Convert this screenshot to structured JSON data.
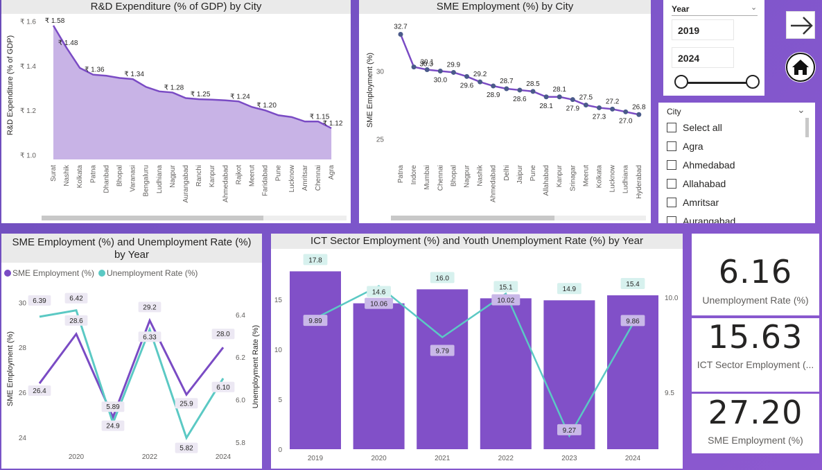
{
  "colors": {
    "purple": "#7a4bc4",
    "bar": "#8150c8",
    "teal": "#5bc9c4",
    "area": "#c8b3e6",
    "line": "#7a4bc4",
    "dot": "#4a5a8a"
  },
  "rd": {
    "title": "R&D Expenditure (% of GDP) by City",
    "ylabel": "R&D Expenditure (% of GDP)",
    "yticks": [
      "₹ 1.6",
      "₹ 1.4",
      "₹ 1.2",
      "₹ 1.0"
    ]
  },
  "sme_city": {
    "title": "SME Employment (%) by City",
    "ylabel": "SME Employment (%)",
    "yticks": [
      "30",
      "25"
    ]
  },
  "slicer": {
    "label": "Year",
    "from": "2019",
    "to": "2024",
    "nav_icon": "arrow-right-icon",
    "home_icon": "home-icon"
  },
  "city_slicer": {
    "label": "City",
    "items": [
      "Select all",
      "Agra",
      "Ahmedabad",
      "Allahabad",
      "Amritsar",
      "Aurangabad"
    ]
  },
  "sme_unemp": {
    "title_line1": "SME Employment (%) and Unemployment Rate (%)",
    "title_line2": "by Year",
    "legend1": "SME Employment (%)",
    "legend2": "Unemployment Rate (%)",
    "ylabel_left": "SME Employment (%)",
    "ylabel_right": "Unemployment Rate (%)",
    "yticks_left": [
      "30",
      "28",
      "26",
      "24"
    ],
    "yticks_right": [
      "6.4",
      "6.2",
      "6.0",
      "5.8"
    ],
    "xticks": [
      "2020",
      "2022",
      "2024"
    ]
  },
  "ict": {
    "title": "ICT Sector Employment (%) and Youth Unemployment Rate (%) by Year",
    "yticks_left": [
      "15",
      "10",
      "5",
      "0"
    ],
    "yticks_right": [
      "10.0",
      "9.5"
    ]
  },
  "kpis": [
    {
      "value": "6.16",
      "label": "Unemployment Rate (%)"
    },
    {
      "value": "15.63",
      "label": "ICT Sector Employment (..."
    },
    {
      "value": "27.20",
      "label": "SME Employment (%)"
    }
  ],
  "chart_data": [
    {
      "type": "area",
      "title": "R&D Expenditure (% of GDP) by City",
      "ylabel": "R&D Expenditure (% of GDP)",
      "categories": [
        "Surat",
        "Nashik",
        "Kolkata",
        "Patna",
        "Dhanbad",
        "Bhopal",
        "Varanasi",
        "Bengaluru",
        "Ludhiana",
        "Nagpur",
        "Aurangabad",
        "Ranchi",
        "Kanpur",
        "Ahmedabad",
        "Rajkot",
        "Meerut",
        "Faridabad",
        "Pune",
        "Lucknow",
        "Amritsar",
        "Chennai",
        "Agra"
      ],
      "values": [
        1.58,
        1.48,
        1.39,
        1.36,
        1.355,
        1.345,
        1.34,
        1.305,
        1.285,
        1.28,
        1.255,
        1.25,
        1.248,
        1.245,
        1.24,
        1.215,
        1.2,
        1.178,
        1.17,
        1.15,
        1.15,
        1.12
      ],
      "data_labels": {
        "Surat": "₹ 1.58",
        "Nashik": "₹ 1.48",
        "Patna": "₹ 1.36",
        "Varanasi": "₹ 1.34",
        "Nagpur": "₹ 1.28",
        "Ranchi": "₹ 1.25",
        "Rajkot": "₹ 1.24",
        "Faridabad": "₹ 1.20",
        "Chennai": "₹ 1.15",
        "Agra": "₹ 1.12"
      },
      "ylim": [
        0.98,
        1.62
      ]
    },
    {
      "type": "line",
      "title": "SME Employment (%) by City",
      "ylabel": "SME Employment (%)",
      "categories": [
        "Patna",
        "Indore",
        "Mumbai",
        "Chennai",
        "Bhopal",
        "Nagpur",
        "Nashik",
        "Ahmedabad",
        "Delhi",
        "Jaipur",
        "Pune",
        "Allahabad",
        "Kanpur",
        "Srinagar",
        "Meerut",
        "Kolkata",
        "Lucknow",
        "Ludhiana",
        "Hyderabad"
      ],
      "values": [
        32.7,
        30.3,
        30.1,
        30.0,
        29.9,
        29.6,
        29.2,
        28.9,
        28.7,
        28.6,
        28.5,
        28.1,
        28.1,
        27.9,
        27.5,
        27.3,
        27.2,
        27.0,
        26.8
      ],
      "data_labels": [
        "32.7",
        "",
        "30.1",
        "30.0",
        "29.9",
        "29.6",
        "29.2",
        "28.9",
        "28.7",
        "28.6",
        "28.5",
        "28.1",
        "28.1",
        "27.9",
        "27.5",
        "27.3",
        "27.2",
        "27.0",
        "26.8"
      ],
      "ylim": [
        23.5,
        34
      ]
    },
    {
      "type": "line",
      "title": "SME Employment (%) and Unemployment Rate (%) by Year",
      "x": [
        "2019",
        "2020",
        "2021",
        "2022",
        "2023",
        "2024"
      ],
      "series": [
        {
          "name": "SME Employment (%)",
          "axis": "left",
          "values": [
            26.4,
            28.6,
            24.9,
            29.2,
            25.9,
            28.0
          ]
        },
        {
          "name": "Unemployment Rate (%)",
          "axis": "right",
          "values": [
            6.39,
            6.42,
            5.89,
            6.33,
            5.82,
            6.1
          ]
        }
      ],
      "ylim_left": [
        23.5,
        30.6
      ],
      "ylim_right": [
        5.77,
        6.52
      ]
    },
    {
      "type": "bar",
      "title": "ICT Sector Employment (%) and Youth Unemployment Rate (%) by Year",
      "categories": [
        "2019",
        "2020",
        "2021",
        "2022",
        "2023",
        "2024"
      ],
      "series": [
        {
          "type": "bar",
          "values": [
            17.8,
            14.6,
            16.0,
            15.1,
            14.9,
            15.4
          ]
        },
        {
          "type": "line",
          "axis": "right",
          "values": [
            9.89,
            10.06,
            9.79,
            10.02,
            9.27,
            9.86
          ]
        }
      ],
      "ylim_left": [
        0,
        18.8
      ],
      "ylim_right": [
        9.2,
        10.19
      ]
    }
  ]
}
